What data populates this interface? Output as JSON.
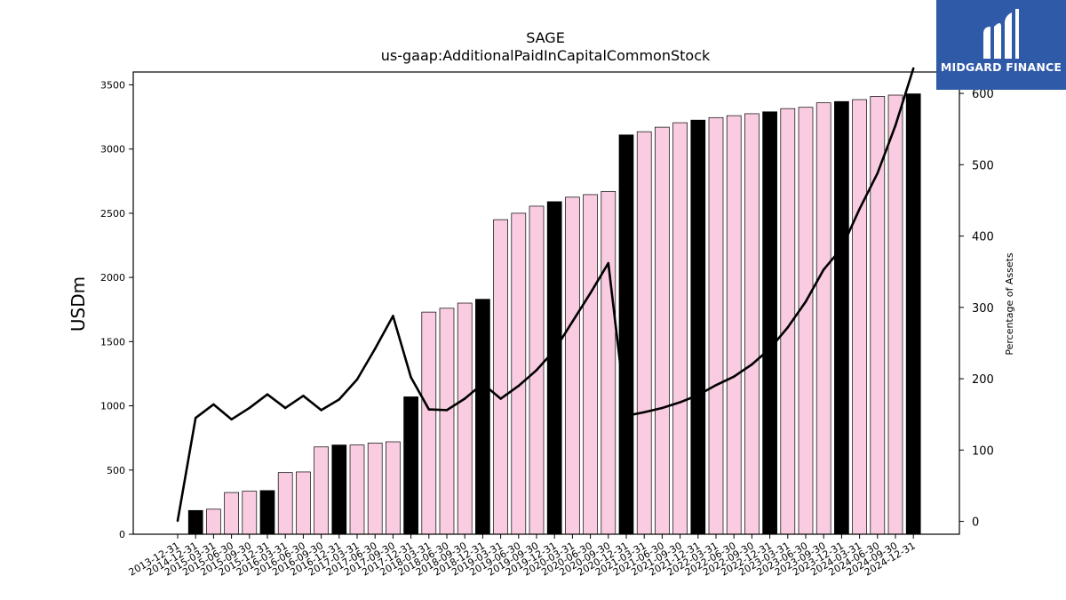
{
  "brand": {
    "logo_text": "MIDGARD FINANCE",
    "background": "#2f5aa8"
  },
  "chart_data": {
    "type": "bar",
    "title": "SAGE",
    "subtitle": "us-gaap:AdditionalPaidInCapitalCommonStock",
    "ylabel": "USDm",
    "y2label": "Percentage of Assets",
    "ylim": [
      0,
      3600
    ],
    "y2lim": [
      -18,
      630
    ],
    "yticks": [
      0,
      500,
      1000,
      1500,
      2000,
      2500,
      3000,
      3500
    ],
    "y2ticks": [
      0,
      100,
      200,
      300,
      400,
      500,
      600
    ],
    "colors": {
      "annual": "#000000",
      "quarter": "#f9cce1",
      "line": "#000000"
    },
    "categories": [
      "2013-12-31",
      "2014-12-31",
      "2015-03-31",
      "2015-06-30",
      "2015-09-30",
      "2015-12-31",
      "2016-03-31",
      "2016-06-30",
      "2016-09-30",
      "2016-12-31",
      "2017-03-31",
      "2017-06-30",
      "2017-09-30",
      "2017-12-31",
      "2018-03-31",
      "2018-06-30",
      "2018-09-30",
      "2018-12-31",
      "2019-03-31",
      "2019-06-30",
      "2019-09-30",
      "2019-12-31",
      "2020-03-31",
      "2020-06-30",
      "2020-09-30",
      "2020-12-31",
      "2021-03-31",
      "2021-06-30",
      "2021-09-30",
      "2021-12-31",
      "2022-03-31",
      "2022-06-30",
      "2022-09-30",
      "2022-12-31",
      "2023-03-31",
      "2023-06-30",
      "2023-09-30",
      "2023-12-31",
      "2024-03-31",
      "2024-06-30",
      "2024-09-30",
      "2024-12-31"
    ],
    "series": [
      {
        "type": "bar",
        "values": [
          null,
          185,
          195,
          325,
          335,
          340,
          480,
          485,
          680,
          695,
          695,
          710,
          720,
          1070,
          1730,
          1760,
          1800,
          1830,
          2450,
          2500,
          2555,
          2590,
          2625,
          2645,
          2670,
          3110,
          3135,
          3170,
          3205,
          3225,
          3245,
          3260,
          3275,
          3290,
          3315,
          3325,
          3360,
          3370,
          3385,
          3410,
          3420,
          3430
        ],
        "annual": [
          false,
          true,
          false,
          false,
          false,
          true,
          false,
          false,
          false,
          true,
          false,
          false,
          false,
          true,
          false,
          false,
          false,
          true,
          false,
          false,
          false,
          true,
          false,
          false,
          false,
          true,
          false,
          false,
          false,
          true,
          false,
          false,
          false,
          true,
          false,
          false,
          false,
          true,
          false,
          false,
          false,
          true
        ]
      },
      {
        "type": "line",
        "axis": "right",
        "values": [
          1,
          145,
          164,
          143,
          159,
          178,
          159,
          176,
          156,
          171,
          199,
          242,
          288,
          202,
          157,
          156,
          172,
          193,
          172,
          190,
          212,
          240,
          280,
          320,
          362,
          148,
          153,
          159,
          167,
          177,
          191,
          203,
          220,
          242,
          272,
          308,
          353,
          383,
          438,
          488,
          555,
          635
        ]
      }
    ]
  }
}
